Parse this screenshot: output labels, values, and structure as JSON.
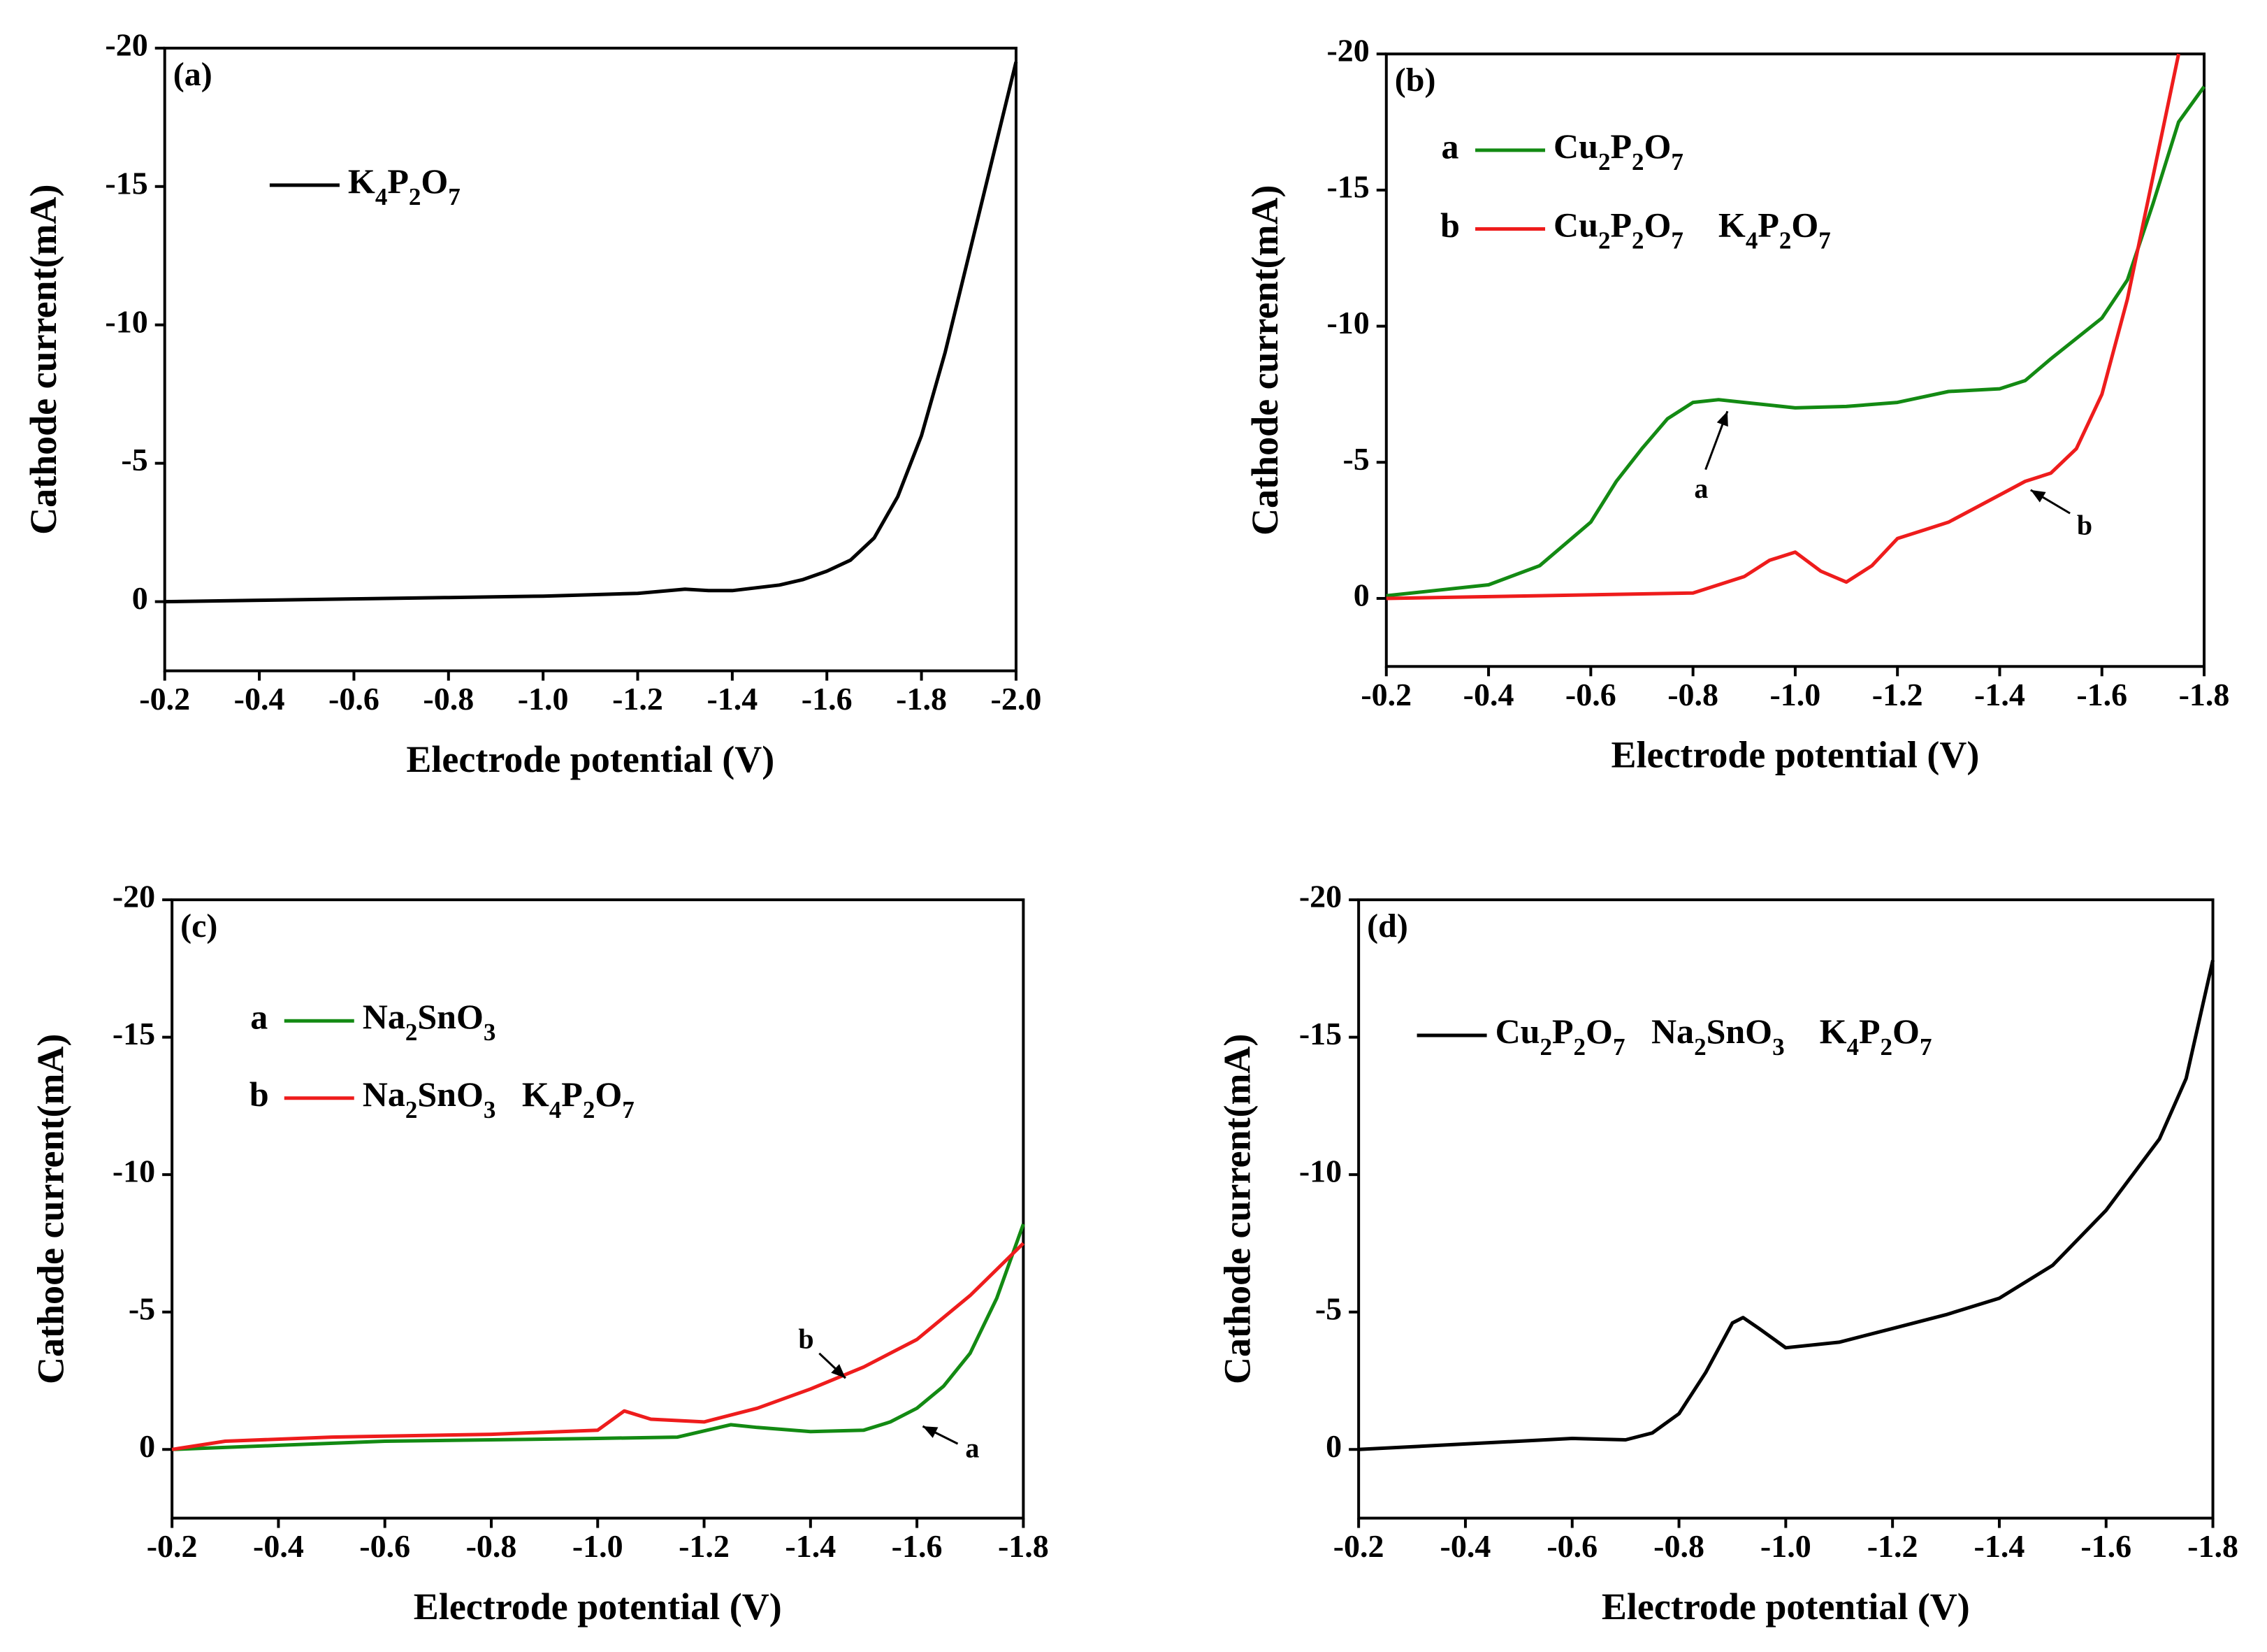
{
  "chart_data": [
    {
      "type": "line",
      "panel_label": "(a)",
      "xlabel": "Electrode potential (V)",
      "ylabel": "Cathode current(mA)",
      "xlim": [
        -0.2,
        -2.0
      ],
      "ylim": [
        2.5,
        -20
      ],
      "xticks": [
        -0.2,
        -0.4,
        -0.6,
        -0.8,
        {
          "value": -1.0,
          "label": "-1.0"
        },
        -1.2,
        -1.4,
        -1.6,
        -1.8,
        {
          "value": -2.0,
          "label": "-2.0"
        }
      ],
      "yticks": [
        0,
        -5,
        -10,
        -15,
        -20
      ],
      "series": [
        {
          "name": "K4P2O7",
          "color": "#000000",
          "x": [
            -0.2,
            -0.4,
            -0.6,
            -0.8,
            -1.0,
            -1.1,
            -1.2,
            -1.3,
            -1.35,
            -1.4,
            -1.5,
            -1.55,
            -1.6,
            -1.65,
            -1.7,
            -1.75,
            -1.8,
            -1.85,
            -1.9,
            -1.95,
            -2.0
          ],
          "values": [
            0,
            -0.05,
            -0.1,
            -0.15,
            -0.2,
            -0.25,
            -0.3,
            -0.45,
            -0.4,
            -0.4,
            -0.6,
            -0.8,
            -1.1,
            -1.5,
            -2.3,
            -3.8,
            -6,
            -9,
            -12.5,
            -16,
            -19.5
          ]
        }
      ]
    },
    {
      "type": "line",
      "panel_label": "(b)",
      "xlabel": "Electrode potential (V)",
      "ylabel": "Cathode current(mA)",
      "xlim": [
        -0.2,
        -1.8
      ],
      "ylim": [
        2.5,
        -20
      ],
      "xticks": [
        -0.2,
        -0.4,
        -0.6,
        -0.8,
        {
          "value": -1.0,
          "label": "-1.0"
        },
        -1.2,
        -1.4,
        -1.6,
        -1.8
      ],
      "yticks": [
        0,
        -5,
        -10,
        -15,
        -20
      ],
      "annotations": [
        "a",
        "b"
      ],
      "series": [
        {
          "label": "a",
          "name": "Cu2P2O7",
          "color": "#138a13",
          "x": [
            -0.2,
            -0.3,
            -0.4,
            -0.5,
            -0.6,
            -0.65,
            -0.7,
            -0.75,
            -0.8,
            -0.85,
            -0.9,
            -1.0,
            -1.1,
            -1.2,
            -1.3,
            -1.4,
            -1.45,
            -1.5,
            -1.6,
            -1.65,
            -1.7,
            -1.75,
            -1.8
          ],
          "values": [
            -0.1,
            -0.3,
            -0.5,
            -1.2,
            -2.8,
            -4.3,
            -5.5,
            -6.6,
            -7.2,
            -7.3,
            -7.2,
            -7.0,
            -7.05,
            -7.2,
            -7.6,
            -7.7,
            -8.0,
            -8.8,
            -10.3,
            -11.7,
            -14.5,
            -17.5,
            -18.8
          ]
        },
        {
          "label": "b",
          "name": "Cu2P2O7    K4P2O7",
          "color": "#ee1c1c",
          "x": [
            -0.2,
            -0.5,
            -0.8,
            -0.9,
            -0.95,
            -1.0,
            -1.05,
            -1.1,
            -1.15,
            -1.2,
            -1.25,
            -1.3,
            -1.4,
            -1.45,
            -1.5,
            -1.55,
            -1.6,
            -1.65,
            -1.7,
            -1.75
          ],
          "values": [
            0,
            -0.1,
            -0.2,
            -0.8,
            -1.4,
            -1.7,
            -1.0,
            -0.6,
            -1.2,
            -2.2,
            -2.5,
            -2.8,
            -3.8,
            -4.3,
            -4.6,
            -5.5,
            -7.5,
            -11.0,
            -15.5,
            -20
          ]
        }
      ]
    },
    {
      "type": "line",
      "panel_label": "(c)",
      "xlabel": "Electrode potential (V)",
      "ylabel": "Cathode current(mA)",
      "xlim": [
        -0.2,
        -1.8
      ],
      "ylim": [
        2.5,
        -20
      ],
      "xticks": [
        -0.2,
        -0.4,
        -0.6,
        -0.8,
        {
          "value": -1.0,
          "label": "-1.0"
        },
        -1.2,
        -1.4,
        -1.6,
        -1.8
      ],
      "yticks": [
        0,
        -5,
        -10,
        -15,
        -20
      ],
      "annotations": [
        "b",
        "a"
      ],
      "series": [
        {
          "label": "a",
          "name": "Na2SnO3",
          "color": "#138a13",
          "x": [
            -0.2,
            -0.4,
            -0.6,
            -0.8,
            -1.0,
            -1.15,
            -1.25,
            -1.3,
            -1.4,
            -1.5,
            -1.55,
            -1.6,
            -1.65,
            -1.7,
            -1.75,
            -1.8
          ],
          "values": [
            0,
            -0.15,
            -0.3,
            -0.35,
            -0.4,
            -0.45,
            -0.9,
            -0.8,
            -0.65,
            -0.7,
            -1.0,
            -1.5,
            -2.3,
            -3.5,
            -5.5,
            -8.2
          ]
        },
        {
          "label": "b",
          "name": "Na2SnO3   K4P2O7",
          "color": "#ee1c1c",
          "x": [
            -0.2,
            -0.3,
            -0.5,
            -0.8,
            -1.0,
            -1.05,
            -1.1,
            -1.2,
            -1.3,
            -1.4,
            -1.5,
            -1.6,
            -1.7,
            -1.8
          ],
          "values": [
            0,
            -0.3,
            -0.45,
            -0.55,
            -0.7,
            -1.4,
            -1.1,
            -1.0,
            -1.5,
            -2.2,
            -3.0,
            -4.0,
            -5.6,
            -7.5
          ]
        }
      ]
    },
    {
      "type": "line",
      "panel_label": "(d)",
      "xlabel": "Electrode potential (V)",
      "ylabel": "Cathode current(mA)",
      "xlim": [
        -0.2,
        -1.8
      ],
      "ylim": [
        2.5,
        -20
      ],
      "xticks": [
        -0.2,
        -0.4,
        -0.6,
        -0.8,
        {
          "value": -1.0,
          "label": "-1.0"
        },
        -1.2,
        -1.4,
        -1.6,
        -1.8
      ],
      "yticks": [
        0,
        -5,
        -10,
        -15,
        -20
      ],
      "series": [
        {
          "name": "Cu2P2O7   Na2SnO3    K4P2O7",
          "color": "#000000",
          "x": [
            -0.2,
            -0.4,
            -0.6,
            -0.7,
            -0.75,
            -0.8,
            -0.85,
            -0.9,
            -0.92,
            -0.95,
            -1.0,
            -1.1,
            -1.2,
            -1.3,
            -1.4,
            -1.5,
            -1.6,
            -1.7,
            -1.75,
            -1.8
          ],
          "values": [
            0,
            -0.2,
            -0.4,
            -0.35,
            -0.6,
            -1.3,
            -2.8,
            -4.6,
            -4.8,
            -4.4,
            -3.7,
            -3.9,
            -4.4,
            -4.9,
            -5.5,
            -6.7,
            -8.7,
            -11.3,
            -13.5,
            -17.8
          ]
        }
      ]
    }
  ]
}
